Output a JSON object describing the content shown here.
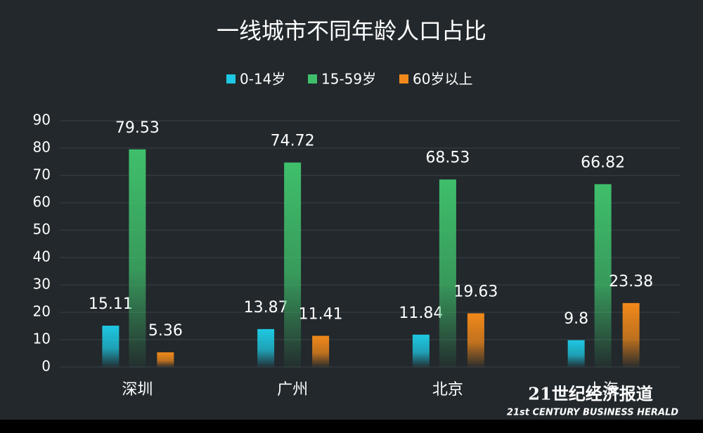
{
  "chart_data": {
    "type": "bar",
    "title": "一线城市不同年龄人口占比",
    "categories": [
      "深圳",
      "广州",
      "北京",
      "上海"
    ],
    "series": [
      {
        "name": "0-14岁",
        "color": "#1ec8e2",
        "values": [
          15.11,
          13.87,
          11.84,
          9.8
        ]
      },
      {
        "name": "15-59岁",
        "color": "#3fbf6b",
        "values": [
          79.53,
          74.72,
          68.53,
          66.82
        ]
      },
      {
        "name": "60岁以上",
        "color": "#f2891a",
        "values": [
          5.36,
          11.41,
          19.63,
          23.38
        ]
      }
    ],
    "ylim": [
      0,
      90
    ],
    "yticks": [
      0,
      10,
      20,
      30,
      40,
      50,
      60,
      70,
      80,
      90
    ],
    "grid": true,
    "legend": "top",
    "watermark": {
      "title": "21世纪经济报道",
      "subtitle": "21st CENTURY BUSINESS HERALD"
    }
  }
}
